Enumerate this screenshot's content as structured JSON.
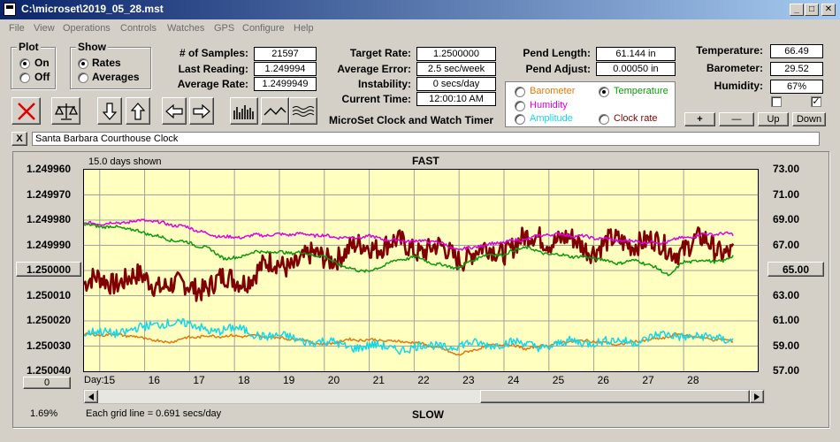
{
  "window": {
    "title": "C:\\microset\\2019_05_28.mst",
    "min_label": "_",
    "max_label": "□",
    "close_label": "✕"
  },
  "menu": [
    "File",
    "View",
    "Operations",
    "Controls",
    "Watches",
    "GPS",
    "Configure",
    "Help"
  ],
  "plot_group": {
    "title": "Plot",
    "options": [
      "On",
      "Off"
    ],
    "selected": "On"
  },
  "show_group": {
    "title": "Show",
    "options": [
      "Rates",
      "Averages"
    ],
    "selected": "Rates"
  },
  "stats": {
    "samples_label": "# of Samples:",
    "samples": "21597",
    "last_label": "Last Reading:",
    "last": "1.249994",
    "avg_label": "Average Rate:",
    "avg": "1.2499949",
    "target_label": "Target Rate:",
    "target": "1.2500000",
    "error_label": "Average Error:",
    "error": "2.5 sec/week",
    "instab_label": "Instability:",
    "instab": "0 secs/day",
    "time_label": "Current Time:",
    "time": "12:00:10 AM",
    "pend_len_label": "Pend Length:",
    "pend_len": "61.144 in",
    "pend_adj_label": "Pend Adjust:",
    "pend_adj": "0.00050 in",
    "temp_label": "Temperature:",
    "temp": "66.49",
    "baro_label": "Barometer:",
    "baro": "29.52",
    "hum_label": "Humidity:",
    "hum": "67%"
  },
  "app_caption": "MicroSet Clock and Watch Timer",
  "sensors": [
    {
      "label": "Barometer",
      "color": "#e07a10",
      "selected": false
    },
    {
      "label": "Temperature",
      "color": "#0a9a0a",
      "selected": true
    },
    {
      "label": "Humidity",
      "color": "#e000e0",
      "selected": false
    },
    {
      "label": "Clock rate",
      "color": "#800000",
      "selected": false
    },
    {
      "label": "Amplitude",
      "color": "#10d8e8",
      "selected": false
    }
  ],
  "right_buttons": [
    "+",
    "—",
    "Up",
    "Down"
  ],
  "checkboxes": [
    {
      "checked": false
    },
    {
      "checked": true
    }
  ],
  "clock_name": "Santa Barbara Courthouse Clock",
  "clear_label": "X",
  "chart_data": {
    "type": "line",
    "top_label": "FAST",
    "bottom_label": "SLOW",
    "days_shown": "15.0 days shown",
    "grid_note": "Each grid line = 0.691 secs/day",
    "percent": "1.69%",
    "day_label": "Day:",
    "x_days": [
      15,
      16,
      17,
      18,
      19,
      20,
      21,
      22,
      23,
      24,
      25,
      26,
      27,
      28
    ],
    "x_range": [
      14.15,
      29.15
    ],
    "left_ticks": [
      "1.249960",
      "1.249970",
      "1.249980",
      "1.249990",
      "1.250000",
      "1.250010",
      "1.250020",
      "1.250030",
      "1.250040"
    ],
    "left_range": [
      1.24996,
      1.25004
    ],
    "right_ticks": [
      "73.00",
      "71.00",
      "69.00",
      "67.00",
      "65.00",
      "63.00",
      "61.00",
      "59.00",
      "57.00"
    ],
    "right_range": [
      57,
      73
    ],
    "center_left": "1.250000",
    "center_right": "65.00",
    "left_button": "0",
    "series": [
      {
        "name": "Clock rate",
        "color": "#800000",
        "width": 2.6,
        "noise": 0.9,
        "freq": 5.5,
        "x": [
          14.15,
          15.0,
          16.0,
          16.3,
          17.0,
          17.5,
          18.0,
          18.5,
          19.0,
          19.5,
          20.0,
          20.5,
          21.0,
          21.5,
          22.0,
          22.5,
          23.0,
          23.5,
          24.0,
          24.3,
          24.8,
          25.5,
          26.0,
          26.5,
          27.0,
          27.5,
          28.0,
          28.6
        ],
        "y": [
          63.9,
          64.4,
          64.0,
          63.5,
          64.0,
          64.2,
          64.9,
          65.6,
          65.7,
          66.2,
          66.3,
          67.2,
          67.0,
          66.9,
          66.6,
          66.2,
          66.4,
          66.8,
          67.3,
          67.8,
          67.3,
          66.9,
          67.1,
          67.5,
          66.8,
          66.8,
          67.3,
          66.4
        ]
      },
      {
        "name": "Humidity",
        "color": "#e000e0",
        "width": 1.5,
        "noise": 0.12,
        "freq": 3,
        "x": [
          14.15,
          15.0,
          15.5,
          16.5,
          17.0,
          17.5,
          18.0,
          19.0,
          20.0,
          20.5,
          21.0,
          22.0,
          22.5,
          23.0,
          24.0,
          24.5,
          25.0,
          25.5,
          26.0,
          27.0,
          27.5,
          28.0,
          28.6
        ],
        "y": [
          68.7,
          68.8,
          69.0,
          68.4,
          67.8,
          67.6,
          67.8,
          67.9,
          67.6,
          67.7,
          67.4,
          67.3,
          66.6,
          67.0,
          67.5,
          67.9,
          67.8,
          67.6,
          67.4,
          67.2,
          67.6,
          67.9,
          67.9
        ]
      },
      {
        "name": "Temperature",
        "color": "#0a9a0a",
        "width": 1.5,
        "noise": 0.12,
        "freq": 3,
        "x": [
          14.15,
          15.0,
          15.5,
          16.0,
          16.5,
          17.0,
          17.3,
          17.5,
          18.0,
          19.0,
          19.5,
          20.0,
          20.5,
          21.0,
          21.5,
          22.0,
          22.5,
          23.0,
          23.5,
          24.0,
          24.3,
          24.8,
          25.5,
          26.0,
          26.5,
          27.0,
          27.2,
          27.5,
          28.0,
          28.4,
          28.6
        ],
        "y": [
          68.6,
          68.4,
          68.0,
          67.5,
          67.2,
          66.6,
          65.9,
          66.0,
          66.5,
          66.4,
          66.1,
          65.2,
          64.9,
          65.7,
          66.1,
          65.5,
          65.2,
          66.2,
          66.3,
          66.9,
          66.4,
          66.2,
          66.0,
          65.6,
          65.8,
          65.0,
          64.6,
          65.7,
          65.8,
          65.7,
          66.2
        ]
      },
      {
        "name": "Barometer",
        "color": "#e07a10",
        "width": 1.5,
        "noise": 0.1,
        "freq": 3,
        "x": [
          14.15,
          15.0,
          15.5,
          16.0,
          16.5,
          17.0,
          18.0,
          19.0,
          19.5,
          20.0,
          20.5,
          21.0,
          21.5,
          22.0,
          22.5,
          23.0,
          23.5,
          24.0,
          25.0,
          25.5,
          26.0,
          26.5,
          27.0,
          27.3,
          27.5,
          28.0,
          28.6
        ],
        "y": [
          59.9,
          59.9,
          59.6,
          59.3,
          59.7,
          59.8,
          59.8,
          59.5,
          59.1,
          59.5,
          59.5,
          59.4,
          59.3,
          58.9,
          58.3,
          58.9,
          59.2,
          58.8,
          59.4,
          59.4,
          59.1,
          59.4,
          59.6,
          59.9,
          59.9,
          59.6,
          59.4
        ]
      },
      {
        "name": "Amplitude",
        "color": "#10d8e8",
        "width": 1.5,
        "noise": 0.35,
        "freq": 6,
        "x": [
          14.15,
          15.0,
          15.5,
          16.0,
          16.5,
          17.0,
          17.5,
          18.0,
          18.5,
          19.0,
          19.5,
          20.0,
          20.5,
          21.0,
          21.5,
          22.0,
          22.5,
          23.0,
          23.5,
          24.0,
          24.5,
          25.0,
          25.5,
          26.0,
          26.5,
          27.0,
          27.5,
          28.0,
          28.6
        ],
        "y": [
          59.9,
          60.2,
          60.4,
          61.0,
          60.6,
          60.3,
          60.3,
          60.0,
          59.7,
          59.5,
          59.3,
          59.0,
          59.0,
          58.8,
          58.9,
          59.0,
          59.1,
          59.1,
          59.3,
          59.1,
          59.0,
          59.3,
          59.4,
          59.3,
          59.5,
          59.8,
          59.9,
          59.6,
          59.6
        ]
      }
    ]
  }
}
